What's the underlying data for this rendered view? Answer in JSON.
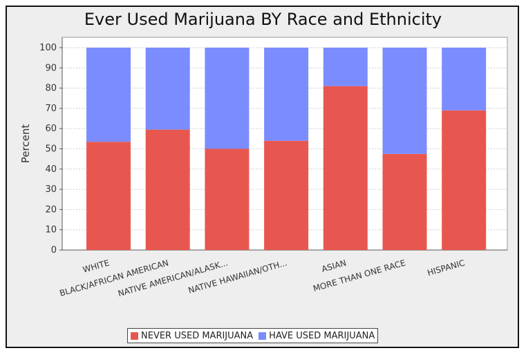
{
  "chart_data": {
    "type": "bar",
    "stacked": true,
    "title": "Ever Used Marijuana BY Race and Ethnicity",
    "xlabel": "",
    "ylabel": "Percent",
    "ylim": [
      0,
      100
    ],
    "yticks": [
      0,
      10,
      20,
      30,
      40,
      50,
      60,
      70,
      80,
      90,
      100
    ],
    "grid": true,
    "legend_position": "bottom",
    "categories": [
      "WHITE",
      "BLACK/AFRICAN AMERICAN",
      "NATIVE AMERICAN/ALASK...",
      "NATIVE HAWAIIAN/OTH...",
      "ASIAN",
      "MORE THAN ONE RACE",
      "HISPANIC"
    ],
    "series": [
      {
        "name": "NEVER USED MARIJUANA",
        "color": "#e8574f",
        "values": [
          53.5,
          59.5,
          50,
          54,
          81,
          47.5,
          69
        ]
      },
      {
        "name": "HAVE USED MARIJUANA",
        "color": "#7b8cff",
        "values": [
          46.5,
          40.5,
          50,
          46,
          19,
          52.5,
          31
        ]
      }
    ]
  }
}
